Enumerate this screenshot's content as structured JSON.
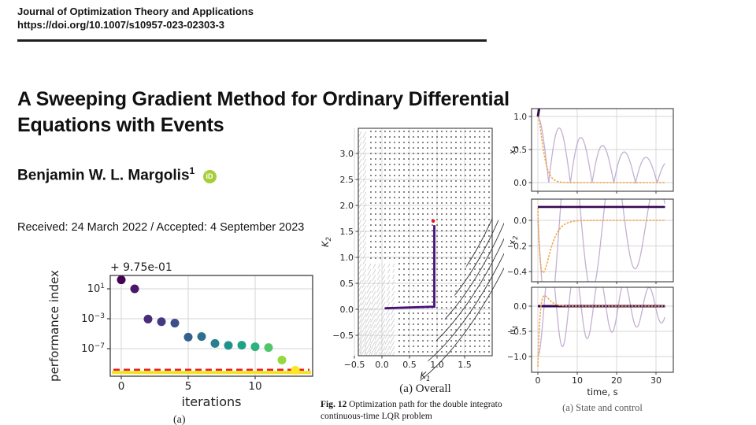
{
  "page": {
    "journal_line": "Journal of Optimization Theory and Applications",
    "doi": "https://doi.org/10.1007/s10957-023-02303-3",
    "title_line1": "A Sweeping Gradient Method for Ordinary Differential",
    "title_line2": "Equations with Events",
    "author": "Benjamin W. L. Margolis",
    "author_superscript": "1",
    "orcid_text": "iD",
    "dates_line": "Received: 24 March 2022 / Accepted: 4 September 2023"
  },
  "colors": {
    "orcid_green": "#a6ce39",
    "grid_gray": "#d4d4d4",
    "spine_gray": "#3c3c3c",
    "contour_black": "#333333",
    "quiver_dot": "#1b1b1b",
    "quiver_streak": "#b8b8b8",
    "path_purple": "#45107a",
    "marker_red": "#e02020",
    "threshold_red": "#e8221f",
    "floor_yellow": "#f2e424",
    "series_light_purple": "#b49cc8",
    "series_orange": "#f2a44e",
    "series_dark_purple": "#35094e",
    "tick_text": "#262626"
  },
  "chart_data": [
    {
      "type": "scatter",
      "name": "performance-index-vs-iterations",
      "xlabel": "iterations",
      "ylabel": "performance index",
      "offset_text": "+ 9.75e-01",
      "x": [
        0,
        1,
        2,
        3,
        4,
        5,
        6,
        7,
        8,
        9,
        10,
        11,
        12,
        13
      ],
      "y": [
        160,
        10,
        0.0009,
        0.0004,
        0.00026,
        3.5e-06,
        4.2e-06,
        5e-07,
        2.7e-07,
        2.9e-07,
        1.8e-07,
        1.4e-07,
        3e-09,
        1.3e-10
      ],
      "point_colors": [
        "#440154",
        "#48186a",
        "#472d7b",
        "#443983",
        "#3d4e8a",
        "#355f8d",
        "#2d708e",
        "#287d8e",
        "#21918c",
        "#1fa188",
        "#2db27d",
        "#51c56a",
        "#95d840",
        "#fde725"
      ],
      "xticks": [
        0,
        5,
        10
      ],
      "yticks": [
        {
          "value": 10,
          "exp": "1"
        },
        {
          "value": 0.001,
          "exp": "−3"
        },
        {
          "value": 1e-07,
          "exp": "−7"
        }
      ],
      "threshold_value": 1.5e-10,
      "floor_value": 6.5e-11,
      "caption": "(a)",
      "xlim": [
        -0.8,
        14.3
      ],
      "grid": true
    },
    {
      "type": "contour-quiver",
      "name": "optimization-path-contour",
      "xlabel": {
        "base": "K",
        "sub": "1"
      },
      "ylabel": {
        "base": "K",
        "sub": "2"
      },
      "xticks": [
        -0.5,
        0,
        0.5,
        1,
        1.5
      ],
      "yticks": [
        -0.5,
        0,
        0.5,
        1,
        1.5,
        2,
        2.5,
        3
      ],
      "xlim": [
        -0.57,
        2.0
      ],
      "ylim": [
        -0.89,
        3.48
      ],
      "optimization_path": [
        [
          0.05,
          0.02
        ],
        [
          0.95,
          0.05
        ],
        [
          0.95,
          1.62
        ]
      ],
      "end_marker": [
        0.93,
        1.7
      ],
      "contour_center": [
        1.32,
        2.3
      ],
      "n_contours": 12,
      "subcaption": "(a) Overall",
      "fig_label": "Fig. 12",
      "fig_caption_line1": " Optimization path for the double integrato",
      "fig_caption_line2": "continuous-time LQR problem",
      "grid": true
    },
    {
      "type": "line-stack",
      "name": "state-and-control-timeseries",
      "xlabel": "time, s",
      "xticks": [
        0,
        10,
        20,
        30
      ],
      "t_end": 32.3,
      "caption": "(a) State and control",
      "subplots": [
        {
          "ylabel": {
            "base": "x",
            "sub": "1"
          },
          "yticks": [
            0,
            0.5,
            1
          ],
          "series": [
            {
              "name": "swept-trajectory",
              "role": "swept",
              "kind": "abscos",
              "amp": 1,
              "decay": 0.035,
              "omega": 0.57,
              "width": 1.3
            },
            {
              "name": "optimal-trajectory",
              "role": "optimal",
              "kind": "critdamp",
              "a": 1.2,
              "width": 1.6,
              "dash": true
            },
            {
              "name": "initial-guess",
              "role": "initial",
              "kind": "seg",
              "points": [
                [
                  0,
                  1
                ],
                [
                  1.2,
                  1.45
                ]
              ],
              "width": 3
            }
          ]
        },
        {
          "ylabel": {
            "base": "x",
            "sub": "2"
          },
          "yticks": [
            -0.4,
            -0.2,
            0
          ],
          "series": [
            {
              "name": "swept-trajectory",
              "role": "swept",
              "kind": "sinneg",
              "amp": 0.9,
              "decay": 0.035,
              "omega": 0.57,
              "width": 1.3
            },
            {
              "name": "optimal-trajectory",
              "role": "optimal",
              "kind": "dip",
              "c": 0.1,
              "a": 0.86,
              "tau": 1.3,
              "width": 1.6,
              "dash": true
            },
            {
              "name": "initial-guess",
              "role": "initial",
              "kind": "seg",
              "points": [
                [
                  0,
                  0.105
                ],
                [
                  32.3,
                  0.105
                ]
              ],
              "width": 2.6
            }
          ]
        },
        {
          "ylabel": {
            "base": "u",
            "sub": "1"
          },
          "yticks": [
            -1,
            -0.5,
            0
          ],
          "series": [
            {
              "name": "swept-control",
              "role": "swept",
              "kind": "cosneg",
              "amp": 1,
              "decay": 0.035,
              "omega": 1.0,
              "width": 1.3
            },
            {
              "name": "initial-guess",
              "role": "initial",
              "kind": "seg",
              "points": [
                [
                  0,
                  0
                ],
                [
                  32.3,
                  0
                ]
              ],
              "width": 3
            },
            {
              "name": "optimal-control",
              "role": "optimal",
              "kind": "rise",
              "a": 1.1,
              "b": -1.2,
              "c": 1.5,
              "width": 1.6,
              "dash": true
            }
          ]
        }
      ]
    }
  ]
}
